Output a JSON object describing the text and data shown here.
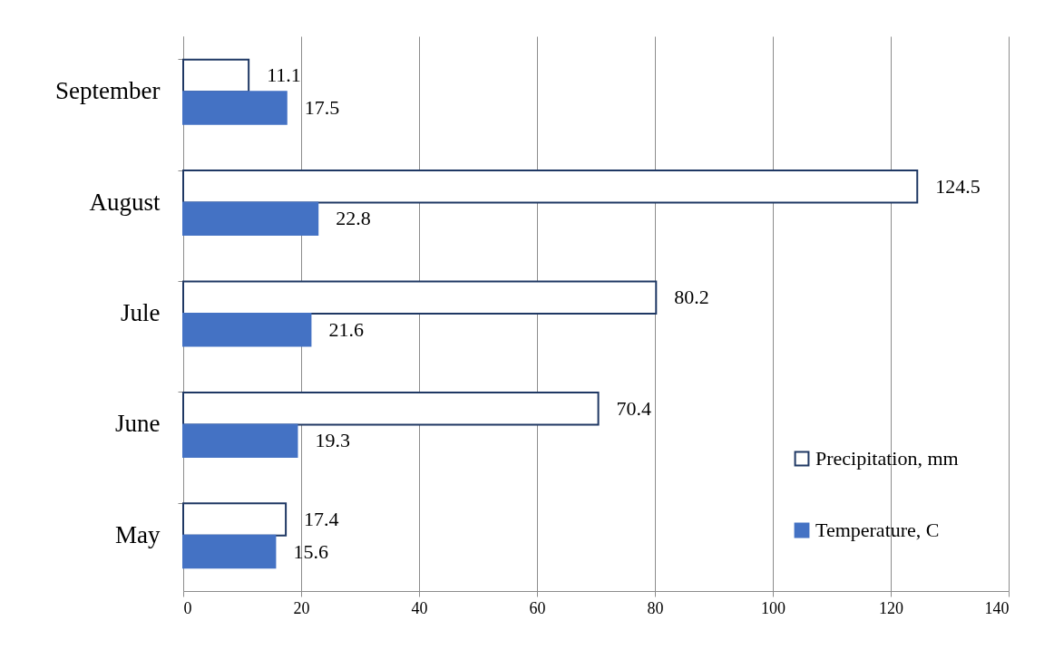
{
  "chart_data": {
    "type": "bar",
    "orientation": "horizontal",
    "categories": [
      "September",
      "August",
      "Jule",
      "June",
      "May"
    ],
    "series": [
      {
        "name": "Precipitation, mm",
        "color": "#ffffff",
        "values": [
          11.1,
          124.5,
          80.2,
          70.4,
          17.4
        ]
      },
      {
        "name": "Temperature, C",
        "color": "#4472c4",
        "values": [
          17.5,
          22.8,
          21.6,
          19.3,
          15.6
        ]
      }
    ],
    "xlim": [
      0,
      140
    ],
    "xticks": [
      0,
      20,
      40,
      60,
      80,
      100,
      120,
      140
    ],
    "grid": "x",
    "legend": "bottom right",
    "data_labels": true
  }
}
